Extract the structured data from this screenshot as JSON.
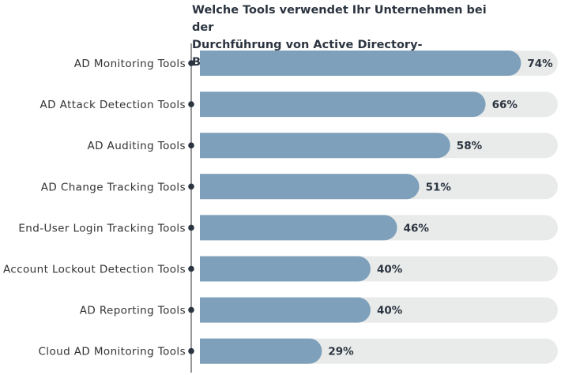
{
  "chart_data": {
    "type": "bar",
    "orientation": "horizontal",
    "title_lines": [
      "Welche Tools verwendet Ihr Unternehmen bei der",
      "Durchführung von Active Directory-Bewertungen?"
    ],
    "categories": [
      "AD Monitoring Tools",
      "AD Attack Detection Tools",
      "AD Auditing Tools",
      "AD Change Tracking Tools",
      "End-User Login Tracking Tools",
      "Account Lockout Detection Tools",
      "AD Reporting Tools",
      "Cloud AD Monitoring Tools"
    ],
    "values": [
      74,
      66,
      58,
      51,
      46,
      40,
      40,
      29
    ],
    "labels": [
      "74%",
      "66%",
      "58%",
      "51%",
      "46%",
      "40%",
      "40%",
      "29%"
    ],
    "unit": "%",
    "xlim": [
      0,
      100
    ],
    "grid": false,
    "colors": {
      "bar": "#7ea0ba",
      "track": "#e9ebea",
      "text": "#2b3440",
      "axis": "#777777"
    }
  }
}
